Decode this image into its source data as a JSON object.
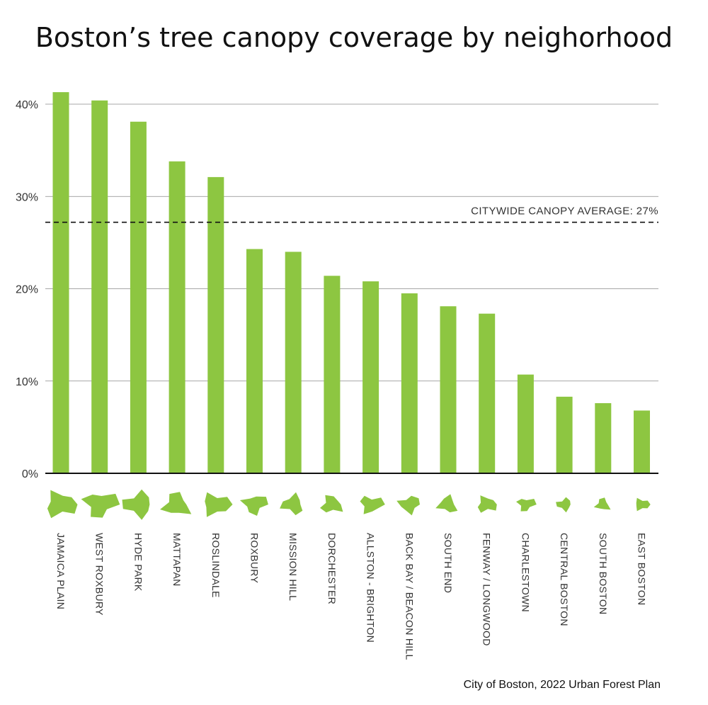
{
  "chart_data": {
    "type": "bar",
    "title": "Boston’s tree canopy coverage by neighorhood",
    "source": "City of Boston, 2022 Urban Forest Plan",
    "categories": [
      "JAMAICA PLAIN",
      "WEST ROXBURY",
      "HYDE PARK",
      "MATTAPAN",
      "ROSLINDALE",
      "ROXBURY",
      "MISSION HILL",
      "DORCHESTER",
      "ALLSTON - BRIGHTON",
      "BACK BAY / BEACON HILL",
      "SOUTH END",
      "FENWAY / LONGWOOD",
      "CHARLESTOWN",
      "CENTRAL BOSTON",
      "SOUTH BOSTON",
      "EAST BOSTON"
    ],
    "values": [
      41.3,
      40.4,
      38.1,
      33.8,
      32.1,
      24.3,
      24.0,
      21.4,
      20.8,
      19.5,
      18.1,
      17.3,
      10.7,
      8.3,
      7.6,
      6.8
    ],
    "ylim": [
      0,
      40
    ],
    "yticks": [
      0,
      10,
      20,
      30,
      40
    ],
    "ytick_labels": [
      "0%",
      "10%",
      "20%",
      "30%",
      "40%"
    ],
    "grid": true,
    "reference_line": {
      "value": 27.2,
      "label": "CITYWIDE CANOPY AVERAGE: 27%"
    },
    "bar_color": "#8dc641",
    "xlabel": "",
    "ylabel": ""
  }
}
